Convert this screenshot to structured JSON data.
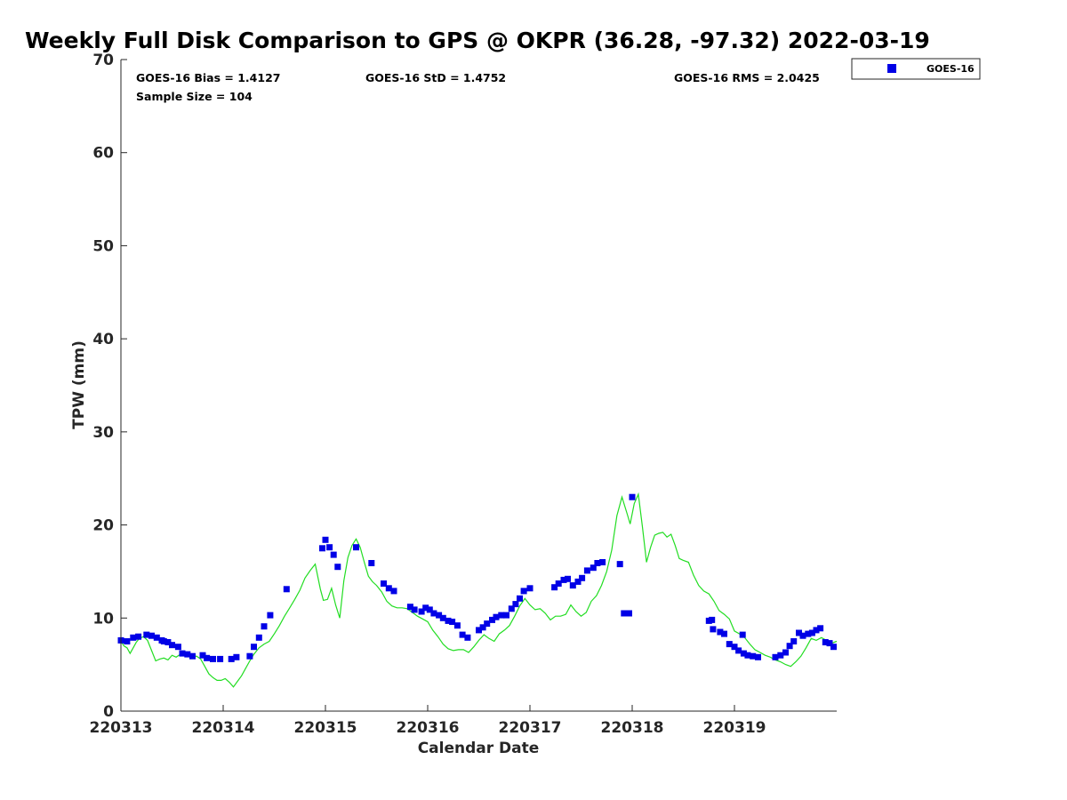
{
  "chart_data": {
    "type": "scatter",
    "title": "Weekly Full Disk Comparison to GPS @ OKPR (36.28, -97.32) 2022-03-19",
    "xlabel": "Calendar Date",
    "ylabel": "TPW (mm)",
    "xlim": [
      0,
      7
    ],
    "ylim": [
      0,
      70
    ],
    "x_ticks": [
      {
        "value": 0,
        "label": "220313"
      },
      {
        "value": 1,
        "label": "220314"
      },
      {
        "value": 2,
        "label": "220315"
      },
      {
        "value": 3,
        "label": "220316"
      },
      {
        "value": 4,
        "label": "220317"
      },
      {
        "value": 5,
        "label": "220318"
      },
      {
        "value": 6,
        "label": "220319"
      }
    ],
    "y_ticks": [
      "0",
      "10",
      "20",
      "30",
      "40",
      "50",
      "60",
      "70"
    ],
    "stats": {
      "bias": "GOES-16 Bias = 1.4127",
      "std": "GOES-16 StD = 1.4752",
      "rms": "GOES-16 RMS = 2.0425",
      "sample_size": "Sample Size = 104"
    },
    "legend": {
      "position": "top-right outside",
      "entries": [
        "GOES-16"
      ]
    },
    "colors": {
      "goes": "#0000e6",
      "gps": "#22dd22"
    },
    "series": [
      {
        "name": "GOES-16",
        "marker": "square",
        "x": [
          0.0,
          0.06,
          0.12,
          0.17,
          0.25,
          0.3,
          0.35,
          0.4,
          0.42,
          0.46,
          0.5,
          0.56,
          0.6,
          0.65,
          0.7,
          0.8,
          0.84,
          0.9,
          0.97,
          1.08,
          1.13,
          1.26,
          1.3,
          1.35,
          1.4,
          1.46,
          1.62,
          1.97,
          2.0,
          2.04,
          2.08,
          2.12,
          2.3,
          2.45,
          2.57,
          2.62,
          2.67,
          2.83,
          2.87,
          2.94,
          2.98,
          3.02,
          3.06,
          3.11,
          3.15,
          3.2,
          3.24,
          3.29,
          3.34,
          3.39,
          3.5,
          3.54,
          3.58,
          3.63,
          3.67,
          3.72,
          3.77,
          3.82,
          3.86,
          3.9,
          3.94,
          4.0,
          4.24,
          4.28,
          4.33,
          4.37,
          4.42,
          4.47,
          4.51,
          4.56,
          4.62,
          4.71,
          5.0,
          4.88,
          4.92,
          4.97,
          5.75,
          5.79,
          5.86,
          5.9,
          5.95,
          6.0,
          6.04,
          6.09,
          6.13,
          6.18,
          6.23,
          6.4,
          6.45,
          6.5,
          6.54,
          6.58,
          6.63,
          6.67,
          6.72,
          6.76,
          6.8,
          6.84,
          6.89,
          6.93,
          6.97,
          5.78,
          6.08,
          4.66
        ],
        "y": [
          7.6,
          7.5,
          7.9,
          8.0,
          8.2,
          8.1,
          7.9,
          7.6,
          7.5,
          7.4,
          7.1,
          6.9,
          6.2,
          6.1,
          5.9,
          6.0,
          5.7,
          5.6,
          5.6,
          5.6,
          5.8,
          5.9,
          6.9,
          7.9,
          9.1,
          10.3,
          13.1,
          17.5,
          18.4,
          17.6,
          16.8,
          15.5,
          17.6,
          15.9,
          13.7,
          13.2,
          12.9,
          11.2,
          10.9,
          10.7,
          11.1,
          10.9,
          10.5,
          10.3,
          10.0,
          9.7,
          9.6,
          9.2,
          8.2,
          7.9,
          8.7,
          9.0,
          9.4,
          9.8,
          10.1,
          10.3,
          10.3,
          11.0,
          11.5,
          12.1,
          12.9,
          13.2,
          13.3,
          13.7,
          14.1,
          14.2,
          13.5,
          13.9,
          14.3,
          15.1,
          15.4,
          16.0,
          23.0,
          15.8,
          10.5,
          10.5,
          9.7,
          8.8,
          8.5,
          8.3,
          7.2,
          6.9,
          6.5,
          6.2,
          6.0,
          5.9,
          5.8,
          5.8,
          6.0,
          6.3,
          7.0,
          7.5,
          8.4,
          8.1,
          8.3,
          8.4,
          8.7,
          8.9,
          7.4,
          7.3,
          6.9,
          9.8,
          8.2,
          15.9
        ]
      },
      {
        "name": "",
        "type": "line",
        "x": [
          0.0,
          0.03,
          0.06,
          0.09,
          0.12,
          0.15,
          0.18,
          0.22,
          0.26,
          0.3,
          0.34,
          0.38,
          0.42,
          0.46,
          0.5,
          0.54,
          0.58,
          0.62,
          0.66,
          0.7,
          0.74,
          0.78,
          0.82,
          0.86,
          0.9,
          0.94,
          0.98,
          1.02,
          1.06,
          1.1,
          1.14,
          1.18,
          1.22,
          1.26,
          1.3,
          1.35,
          1.4,
          1.45,
          1.5,
          1.55,
          1.6,
          1.65,
          1.7,
          1.75,
          1.8,
          1.85,
          1.9,
          1.95,
          1.98,
          2.02,
          2.06,
          2.1,
          2.14,
          2.18,
          2.22,
          2.26,
          2.3,
          2.34,
          2.38,
          2.42,
          2.46,
          2.5,
          2.55,
          2.6,
          2.65,
          2.7,
          2.75,
          2.8,
          2.85,
          2.9,
          2.95,
          3.0,
          3.05,
          3.1,
          3.15,
          3.2,
          3.25,
          3.3,
          3.35,
          3.4,
          3.45,
          3.5,
          3.55,
          3.6,
          3.65,
          3.7,
          3.75,
          3.8,
          3.85,
          3.9,
          3.95,
          4.0,
          4.05,
          4.1,
          4.15,
          4.2,
          4.25,
          4.3,
          4.35,
          4.4,
          4.45,
          4.5,
          4.55,
          4.6,
          4.65,
          4.7,
          4.75,
          4.8,
          4.85,
          4.9,
          4.95,
          4.98,
          5.02,
          5.06,
          5.1,
          5.14,
          5.18,
          5.22,
          5.26,
          5.3,
          5.34,
          5.38,
          5.42,
          5.46,
          5.5,
          5.55,
          5.6,
          5.65,
          5.7,
          5.75,
          5.8,
          5.85,
          5.9,
          5.95,
          6.0,
          6.05,
          6.1,
          6.15,
          6.2,
          6.25,
          6.3,
          6.35,
          6.4,
          6.45,
          6.5,
          6.55,
          6.6,
          6.65,
          6.7,
          6.75,
          6.8,
          6.85,
          6.9,
          6.95,
          7.0
        ],
        "y": [
          7.5,
          7.0,
          6.8,
          6.2,
          6.8,
          7.4,
          7.8,
          8.0,
          7.6,
          6.5,
          5.4,
          5.6,
          5.7,
          5.5,
          6.0,
          5.8,
          6.1,
          6.0,
          5.9,
          5.8,
          5.9,
          5.6,
          4.8,
          4.0,
          3.6,
          3.3,
          3.3,
          3.5,
          3.1,
          2.6,
          3.2,
          3.8,
          4.6,
          5.4,
          6.1,
          6.8,
          7.2,
          7.5,
          8.3,
          9.2,
          10.2,
          11.1,
          12.0,
          13.0,
          14.3,
          15.1,
          15.8,
          13.1,
          11.9,
          12.0,
          13.2,
          11.4,
          10.0,
          14.0,
          16.5,
          17.8,
          18.5,
          17.6,
          16.0,
          14.5,
          13.9,
          13.5,
          12.8,
          11.8,
          11.3,
          11.1,
          11.1,
          11.0,
          10.6,
          10.2,
          9.9,
          9.6,
          8.7,
          8.0,
          7.2,
          6.7,
          6.5,
          6.6,
          6.6,
          6.3,
          6.9,
          7.6,
          8.2,
          7.8,
          7.5,
          8.3,
          8.7,
          9.2,
          10.2,
          11.3,
          12.1,
          11.4,
          10.9,
          11.0,
          10.5,
          9.8,
          10.2,
          10.2,
          10.4,
          11.4,
          10.7,
          10.2,
          10.6,
          11.8,
          12.4,
          13.5,
          15.0,
          17.3,
          21.0,
          23.0,
          21.2,
          20.1,
          22.3,
          23.3,
          19.8,
          16.0,
          17.6,
          18.9,
          19.1,
          19.2,
          18.7,
          19.0,
          17.8,
          16.4,
          16.2,
          16.0,
          14.6,
          13.5,
          12.9,
          12.6,
          11.8,
          10.8,
          10.4,
          9.9,
          8.6,
          8.3,
          7.9,
          7.2,
          6.6,
          6.3,
          6.0,
          5.8,
          5.5,
          5.3,
          5.0,
          4.8,
          5.3,
          5.9,
          6.8,
          7.8,
          7.6,
          7.9,
          7.6,
          7.3,
          7.5
        ]
      }
    ]
  }
}
